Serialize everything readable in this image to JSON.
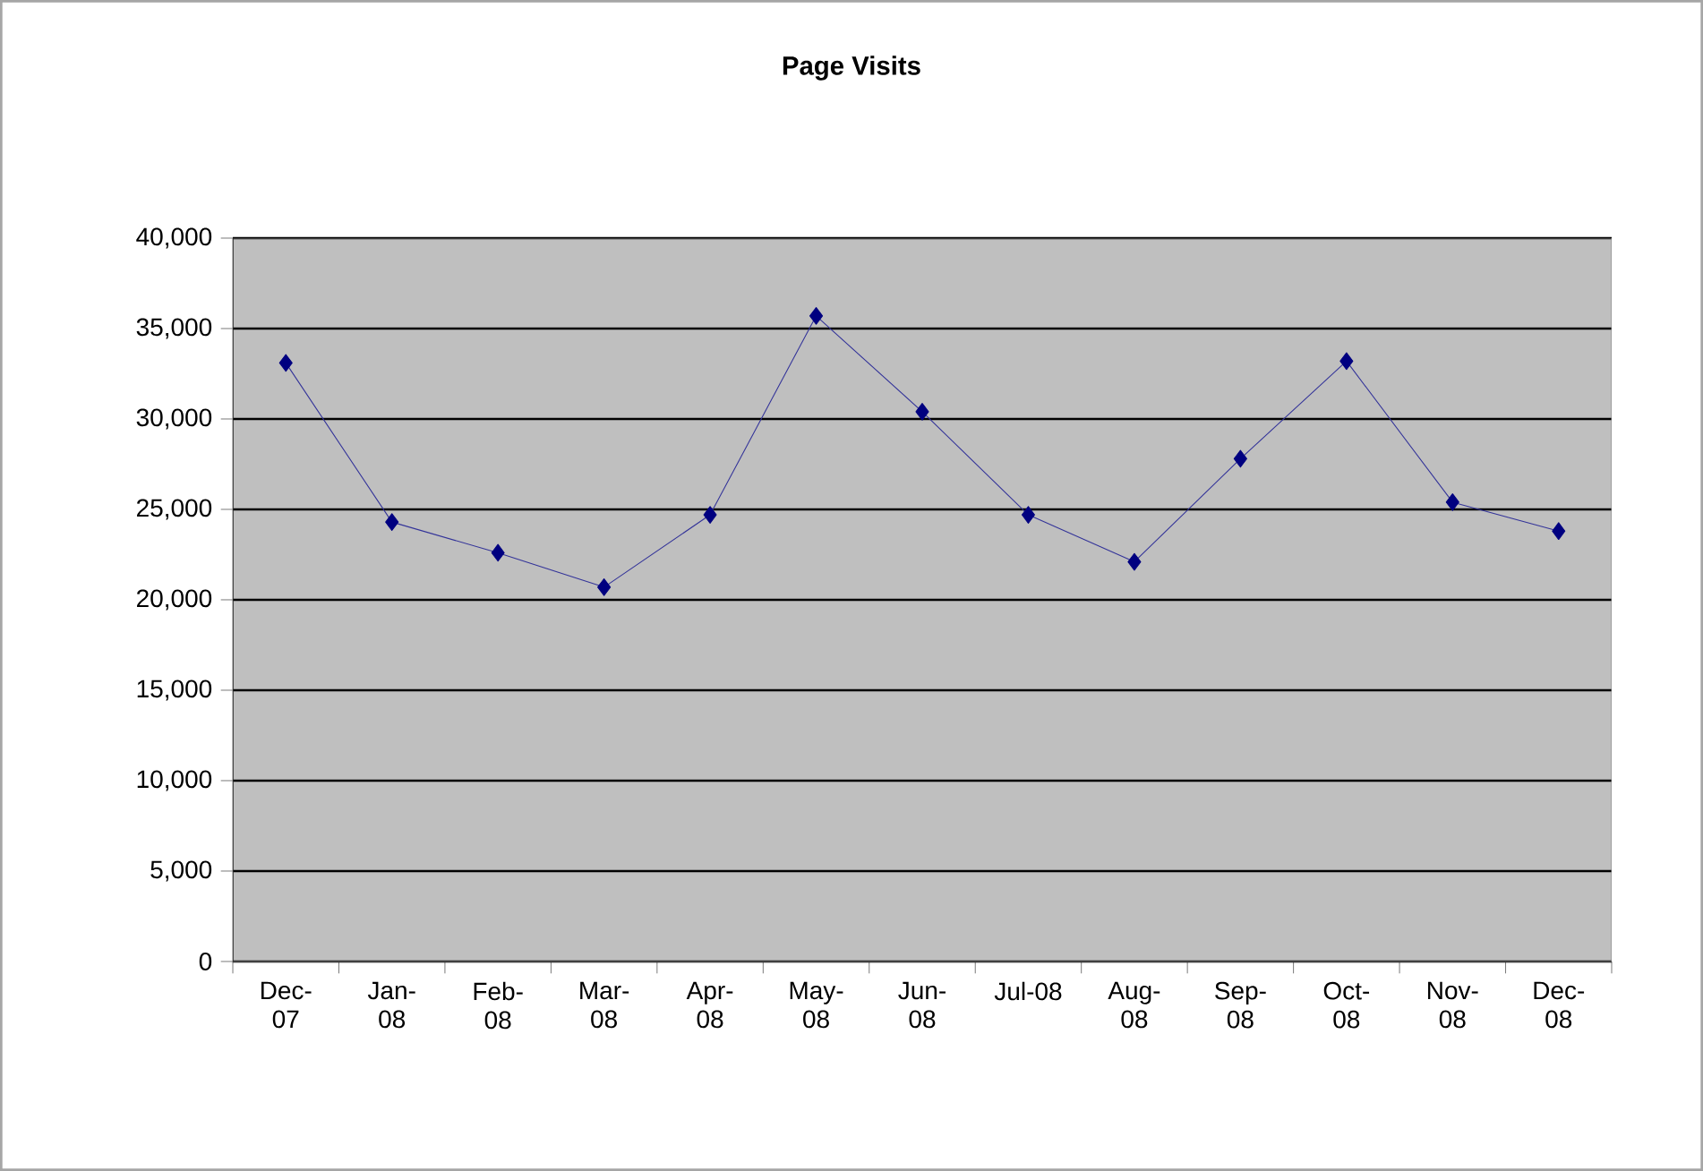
{
  "chart_data": {
    "type": "line",
    "title": "Page Visits",
    "categories": [
      "Dec-07",
      "Jan-08",
      "Feb-08",
      "Mar-08",
      "Apr-08",
      "May-08",
      "Jun-08",
      "Jul-08",
      "Aug-08",
      "Sep-08",
      "Oct-08",
      "Nov-08",
      "Dec-08"
    ],
    "values": [
      33100,
      24300,
      22600,
      20700,
      24700,
      35700,
      30400,
      24700,
      22100,
      27800,
      33200,
      25400,
      23800
    ],
    "color": "#000080",
    "ylim": [
      0,
      40000
    ],
    "yticks": [
      0,
      {
        "value": 5000,
        "label": "5,000"
      },
      {
        "value": 10000,
        "label": "10,000"
      },
      {
        "value": 15000,
        "label": "15,000"
      },
      {
        "value": 20000,
        "label": "20,000"
      },
      {
        "value": 25000,
        "label": "25,000"
      },
      {
        "value": 30000,
        "label": "30,000"
      },
      {
        "value": 35000,
        "label": "35,000"
      },
      {
        "value": 40000,
        "label": "40,000"
      }
    ],
    "grid": "y",
    "marker": "diamond",
    "line_style": "solid"
  }
}
